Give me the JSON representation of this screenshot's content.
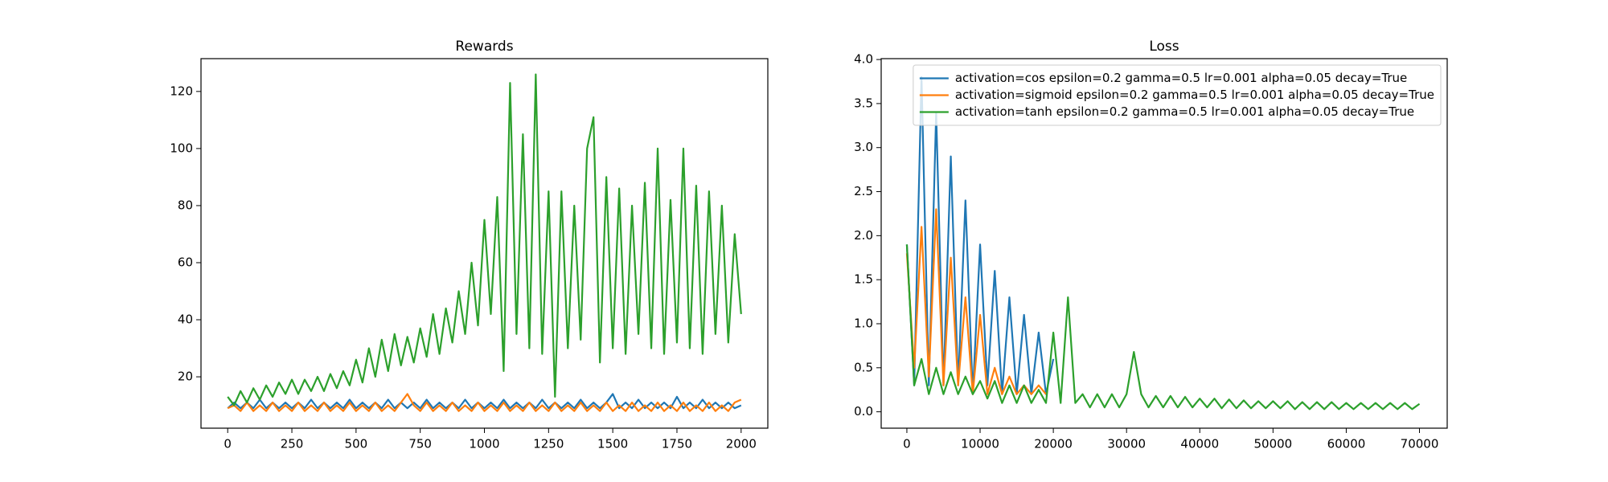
{
  "chart_data": [
    {
      "type": "line",
      "title": "Rewards",
      "x": [
        0,
        25,
        50,
        75,
        100,
        125,
        150,
        175,
        200,
        225,
        250,
        275,
        300,
        325,
        350,
        375,
        400,
        425,
        450,
        475,
        500,
        525,
        550,
        575,
        600,
        625,
        650,
        675,
        700,
        725,
        750,
        775,
        800,
        825,
        850,
        875,
        900,
        925,
        950,
        975,
        1000,
        1025,
        1050,
        1075,
        1100,
        1125,
        1150,
        1175,
        1200,
        1225,
        1250,
        1275,
        1300,
        1325,
        1350,
        1375,
        1400,
        1425,
        1450,
        1475,
        1500,
        1525,
        1550,
        1575,
        1600,
        1625,
        1650,
        1675,
        1700,
        1725,
        1750,
        1775,
        1800,
        1825,
        1850,
        1875,
        1900,
        1925,
        1950,
        1975,
        2000
      ],
      "series": [
        {
          "color": "#1f77b4",
          "values": [
            9,
            11,
            9,
            11,
            9,
            12,
            9,
            11,
            9,
            11,
            9,
            11,
            9,
            12,
            9,
            11,
            9,
            11,
            9,
            12,
            9,
            11,
            9,
            11,
            9,
            12,
            9,
            11,
            9,
            11,
            9,
            12,
            9,
            11,
            9,
            11,
            9,
            12,
            9,
            11,
            9,
            11,
            9,
            12,
            9,
            11,
            9,
            11,
            9,
            12,
            9,
            11,
            9,
            11,
            9,
            12,
            9,
            11,
            9,
            11,
            14,
            9,
            11,
            9,
            12,
            9,
            11,
            9,
            11,
            9,
            13,
            9,
            11,
            9,
            12,
            9,
            11,
            9,
            11,
            9,
            10
          ]
        },
        {
          "color": "#ff7f0e",
          "values": [
            9,
            10,
            8,
            11,
            8,
            10,
            8,
            11,
            8,
            10,
            8,
            11,
            8,
            10,
            8,
            11,
            8,
            10,
            8,
            11,
            8,
            10,
            8,
            11,
            8,
            10,
            8,
            11,
            14,
            10,
            8,
            11,
            8,
            10,
            8,
            11,
            8,
            10,
            8,
            11,
            8,
            10,
            8,
            11,
            8,
            10,
            8,
            11,
            8,
            10,
            8,
            11,
            8,
            10,
            8,
            11,
            8,
            10,
            8,
            11,
            8,
            10,
            8,
            11,
            8,
            10,
            8,
            11,
            8,
            10,
            8,
            11,
            8,
            10,
            8,
            11,
            8,
            10,
            8,
            11,
            12
          ]
        },
        {
          "color": "#2ca02c",
          "values": [
            13,
            10,
            15,
            11,
            16,
            12,
            17,
            13,
            18,
            14,
            19,
            14,
            19,
            15,
            20,
            15,
            21,
            16,
            22,
            17,
            26,
            18,
            30,
            20,
            33,
            22,
            35,
            24,
            34,
            25,
            37,
            27,
            42,
            28,
            44,
            32,
            50,
            35,
            60,
            38,
            75,
            42,
            83,
            22,
            123,
            35,
            105,
            30,
            126,
            28,
            85,
            13,
            85,
            30,
            80,
            33,
            100,
            111,
            25,
            90,
            30,
            86,
            28,
            80,
            35,
            88,
            30,
            100,
            28,
            82,
            32,
            100,
            30,
            87,
            28,
            85,
            35,
            80,
            32,
            70,
            42
          ]
        }
      ],
      "xlim": [
        -104,
        2104
      ],
      "ylim": [
        2,
        131.5
      ],
      "xticks": [
        0,
        250,
        500,
        750,
        1000,
        1250,
        1500,
        1750,
        2000
      ],
      "yticks": [
        20,
        40,
        60,
        80,
        100,
        120
      ]
    },
    {
      "type": "line",
      "title": "Loss",
      "x": [
        0,
        1000,
        2000,
        3000,
        4000,
        5000,
        6000,
        7000,
        8000,
        9000,
        10000,
        11000,
        12000,
        13000,
        14000,
        15000,
        16000,
        17000,
        18000,
        19000,
        20000,
        21000,
        22000,
        23000,
        24000,
        25000,
        26000,
        27000,
        28000,
        29000,
        30000,
        31000,
        32000,
        33000,
        34000,
        35000,
        36000,
        37000,
        38000,
        39000,
        40000,
        41000,
        42000,
        43000,
        44000,
        45000,
        46000,
        47000,
        48000,
        49000,
        50000,
        51000,
        52000,
        53000,
        54000,
        55000,
        56000,
        57000,
        58000,
        59000,
        60000,
        61000,
        62000,
        63000,
        64000,
        65000,
        66000,
        67000,
        68000,
        69000,
        70000
      ],
      "series": [
        {
          "name": "activation=cos epsilon=0.2 gamma=0.5 lr=0.001 alpha=0.05 decay=True",
          "color": "#1f77b4",
          "values": [
            1.9,
            0.3,
            3.8,
            0.3,
            3.4,
            0.3,
            2.9,
            0.3,
            2.4,
            0.2,
            1.9,
            0.3,
            1.6,
            0.2,
            1.3,
            0.2,
            1.1,
            0.2,
            0.9,
            0.2,
            0.6,
            null,
            null,
            null,
            null,
            null,
            null,
            null,
            null,
            null,
            null,
            null,
            null,
            null,
            null,
            null,
            null,
            null,
            null,
            null,
            null,
            null,
            null,
            null,
            null,
            null,
            null,
            null,
            null,
            null,
            null,
            null,
            null,
            null,
            null,
            null,
            null,
            null,
            null,
            null,
            null,
            null,
            null,
            null,
            null,
            null,
            null,
            null,
            null,
            null,
            null
          ]
        },
        {
          "name": "activation=sigmoid epsilon=0.2 gamma=0.5 lr=0.001 alpha=0.05 decay=True",
          "color": "#ff7f0e",
          "values": [
            1.8,
            0.5,
            2.1,
            0.4,
            2.3,
            0.3,
            1.75,
            0.3,
            1.3,
            0.2,
            1.1,
            0.2,
            0.5,
            0.2,
            0.4,
            0.2,
            0.3,
            0.2,
            0.3,
            0.2,
            null,
            null,
            null,
            null,
            null,
            null,
            null,
            null,
            null,
            null,
            null,
            null,
            null,
            null,
            null,
            null,
            null,
            null,
            null,
            null,
            null,
            null,
            null,
            null,
            null,
            null,
            null,
            null,
            null,
            null,
            null,
            null,
            null,
            null,
            null,
            null,
            null,
            null,
            null,
            null,
            null,
            null,
            null,
            null,
            null,
            null,
            null,
            null,
            null,
            null,
            null
          ]
        },
        {
          "name": "activation=tanh epsilon=0.2 gamma=0.5 lr=0.001 alpha=0.05 decay=True",
          "color": "#2ca02c",
          "values": [
            1.9,
            0.3,
            0.6,
            0.2,
            0.5,
            0.2,
            0.45,
            0.2,
            0.4,
            0.2,
            0.35,
            0.15,
            0.35,
            0.1,
            0.3,
            0.1,
            0.3,
            0.1,
            0.25,
            0.1,
            0.9,
            0.1,
            1.3,
            0.1,
            0.2,
            0.05,
            0.2,
            0.05,
            0.2,
            0.05,
            0.2,
            0.68,
            0.2,
            0.05,
            0.18,
            0.05,
            0.18,
            0.05,
            0.17,
            0.05,
            0.15,
            0.05,
            0.15,
            0.04,
            0.14,
            0.04,
            0.13,
            0.04,
            0.12,
            0.04,
            0.12,
            0.04,
            0.12,
            0.03,
            0.11,
            0.03,
            0.11,
            0.03,
            0.11,
            0.03,
            0.1,
            0.03,
            0.1,
            0.03,
            0.1,
            0.03,
            0.1,
            0.03,
            0.1,
            0.03,
            0.09
          ]
        }
      ],
      "xlim": [
        -3507,
        73786
      ],
      "ylim": [
        -0.186,
        4.01
      ],
      "xticks": [
        0,
        10000,
        20000,
        30000,
        40000,
        50000,
        60000,
        70000
      ],
      "yticks": [
        {
          "value": 0,
          "label": "0.0"
        },
        0.5,
        {
          "value": 1,
          "label": "1.0"
        },
        1.5,
        {
          "value": 2,
          "label": "2.0"
        },
        2.5,
        {
          "value": 3,
          "label": "3.0"
        },
        3.5,
        {
          "value": 4,
          "label": "4.0"
        }
      ],
      "legend": "upper right"
    }
  ]
}
